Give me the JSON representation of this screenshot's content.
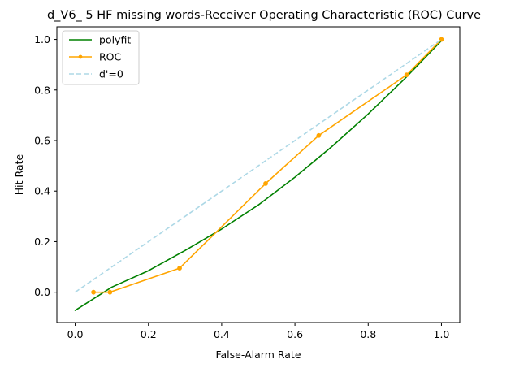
{
  "chart_data": {
    "type": "line",
    "title": "d_V6_ 5 HF missing words-Receiver Operating Characteristic (ROC) Curve",
    "xlabel": "False-Alarm Rate",
    "ylabel": "Hit Rate",
    "xlim": [
      -0.05,
      1.05
    ],
    "ylim": [
      -0.12,
      1.05
    ],
    "xticks": [
      0.0,
      0.2,
      0.4,
      0.6,
      0.8,
      1.0
    ],
    "xtick_labels": [
      "0.0",
      "0.2",
      "0.4",
      "0.6",
      "0.8",
      "1.0"
    ],
    "yticks": [
      0.0,
      0.2,
      0.4,
      0.6,
      0.8,
      1.0
    ],
    "ytick_labels": [
      "0.0",
      "0.2",
      "0.4",
      "0.6",
      "0.8",
      "1.0"
    ],
    "grid": false,
    "legend_position": "upper-left",
    "series": [
      {
        "name": "polyfit",
        "style": "solid",
        "color": "#008000",
        "markers": false,
        "x": [
          0.0,
          0.1,
          0.2,
          0.3,
          0.4,
          0.5,
          0.6,
          0.7,
          0.8,
          0.9,
          1.0
        ],
        "y": [
          -0.072,
          0.02,
          0.085,
          0.165,
          0.25,
          0.345,
          0.455,
          0.575,
          0.705,
          0.845,
          0.995
        ]
      },
      {
        "name": "ROC",
        "style": "solid",
        "color": "#FFA500",
        "markers": true,
        "x": [
          0.05,
          0.095,
          0.285,
          0.52,
          0.665,
          0.905,
          1.0
        ],
        "y": [
          0.0,
          0.0,
          0.095,
          0.43,
          0.62,
          0.86,
          1.0
        ]
      },
      {
        "name": "d'=0",
        "style": "dashed",
        "color": "#ADD8E6",
        "markers": false,
        "x": [
          0.0,
          1.0
        ],
        "y": [
          0.0,
          1.0
        ]
      }
    ]
  }
}
